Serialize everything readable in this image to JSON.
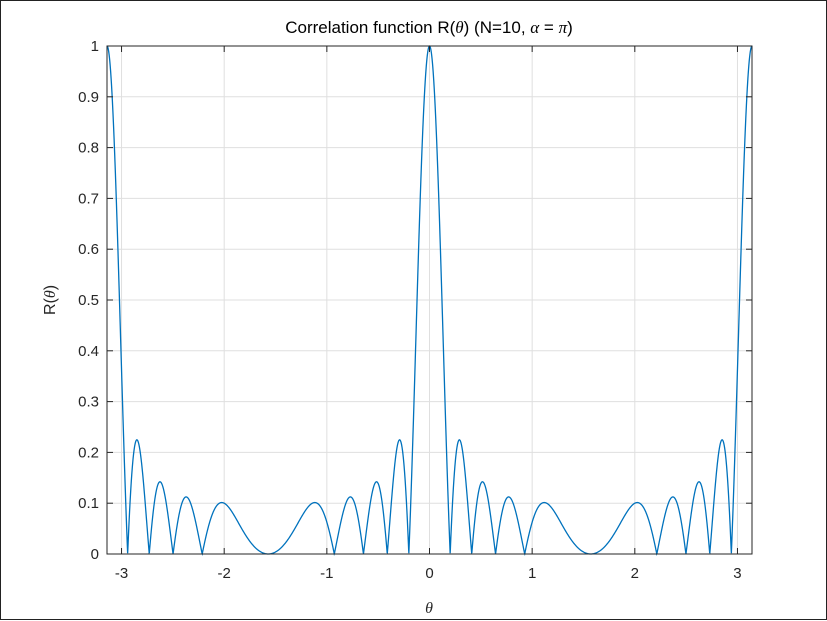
{
  "chart_data": {
    "type": "line",
    "title": {
      "prefix": "Correlation function R(",
      "theta": "θ",
      "middle": ") (N=10, ",
      "alpha": "α",
      "equals": " = ",
      "pi": "π",
      "suffix": ")"
    },
    "xlabel": "θ",
    "ylabel": {
      "prefix": "R(",
      "theta": "θ",
      "suffix": ")"
    },
    "xlim": [
      -3.1416,
      3.1416
    ],
    "ylim": [
      0,
      1
    ],
    "xticks": [
      -3,
      -2,
      -1,
      0,
      1,
      2,
      3
    ],
    "xtick_labels": [
      "-3",
      "-2",
      "-1",
      "0",
      "1",
      "2",
      "3"
    ],
    "yticks": [
      0,
      0.1,
      0.2,
      0.3,
      0.4,
      0.5,
      0.6,
      0.7,
      0.8,
      0.9,
      1
    ],
    "ytick_labels": [
      "0",
      "0.1",
      "0.2",
      "0.3",
      "0.4",
      "0.5",
      "0.6",
      "0.7",
      "0.8",
      "0.9",
      "1"
    ],
    "grid": true,
    "line_color": "#0072BD",
    "series": [
      {
        "function": "abs(sin(N*alpha*sin(theta)/2) / (N*sin(alpha*sin(theta)/2)))",
        "N": 10,
        "alpha": 3.14159265,
        "key_points": {
          "theta": [
            -3.1416,
            -2.86,
            -2.64,
            -2.39,
            -2.05,
            -1.5708,
            -1.11,
            -0.75,
            -0.52,
            -0.29,
            0,
            0.29,
            0.52,
            0.75,
            1.11,
            1.5708,
            2.05,
            2.39,
            2.64,
            2.86,
            3.1416
          ],
          "R": [
            1,
            0.22,
            0.14,
            0.11,
            0.1,
            0,
            0.1,
            0.11,
            0.14,
            0.22,
            1,
            0.22,
            0.14,
            0.11,
            0.1,
            0,
            0.1,
            0.11,
            0.14,
            0.22,
            1
          ]
        }
      }
    ]
  }
}
